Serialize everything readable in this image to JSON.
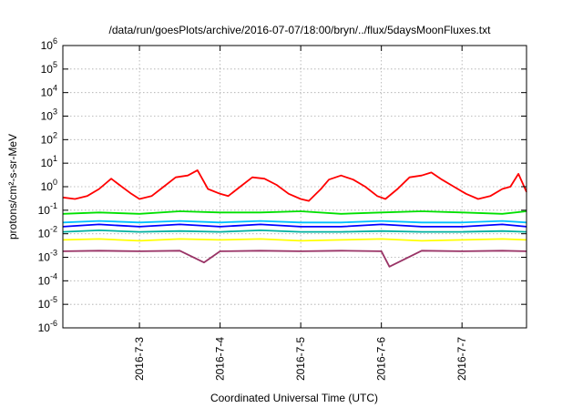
{
  "chart_data": {
    "type": "line",
    "title": "/data/run/goesPlots/archive/2016-07-07/18:00/bryn/../flux/5daysMoonFluxes.txt",
    "xlabel": "Coordinated Universal Time (UTC)",
    "ylabel": "protons/cm²-s-sr-MeV",
    "yscale": "log",
    "ylim": [
      1e-06,
      1000000.0
    ],
    "xlim": [
      2016.502,
      2016.5157
    ],
    "grid": true,
    "legend": "none",
    "x_tick_labels": [
      "2016-7-3",
      "2016-7-4",
      "2016-7-5",
      "2016-7-6",
      "2016-7-7"
    ],
    "x_tick_days": [
      3,
      4,
      5,
      6,
      7
    ],
    "x_range_days": [
      2.05,
      7.8
    ],
    "y_tick_exponents": [
      -6,
      -5,
      -4,
      -3,
      -2,
      -1,
      0,
      1,
      2,
      3,
      4,
      5,
      6
    ],
    "series": [
      {
        "color": "#ff0000",
        "days": [
          2.05,
          2.2,
          2.35,
          2.5,
          2.65,
          2.75,
          2.9,
          3.0,
          3.15,
          3.3,
          3.45,
          3.6,
          3.72,
          3.85,
          4.0,
          4.1,
          4.25,
          4.4,
          4.55,
          4.7,
          4.85,
          5.0,
          5.1,
          5.25,
          5.35,
          5.5,
          5.65,
          5.8,
          5.95,
          6.05,
          6.2,
          6.35,
          6.5,
          6.62,
          6.75,
          6.9,
          7.05,
          7.2,
          7.35,
          7.5,
          7.6,
          7.7,
          7.8
        ],
        "values": [
          0.35,
          0.3,
          0.4,
          0.8,
          2.2,
          1.2,
          0.5,
          0.3,
          0.4,
          1.0,
          2.5,
          3.0,
          5.0,
          0.8,
          0.5,
          0.4,
          1.0,
          2.5,
          2.2,
          1.2,
          0.5,
          0.3,
          0.25,
          0.8,
          2.0,
          3.0,
          2.0,
          1.0,
          0.4,
          0.3,
          0.8,
          2.5,
          3.0,
          4.0,
          2.0,
          1.0,
          0.5,
          0.3,
          0.4,
          0.8,
          1.0,
          3.5,
          0.6
        ]
      },
      {
        "color": "#00e000",
        "days": [
          2.05,
          2.5,
          3.0,
          3.5,
          4.0,
          4.5,
          5.0,
          5.5,
          6.0,
          6.5,
          7.0,
          7.5,
          7.8
        ],
        "values": [
          0.07,
          0.08,
          0.07,
          0.09,
          0.08,
          0.08,
          0.09,
          0.07,
          0.08,
          0.09,
          0.08,
          0.07,
          0.09
        ]
      },
      {
        "color": "#00c0ff",
        "days": [
          2.05,
          2.5,
          3.0,
          3.5,
          4.0,
          4.5,
          5.0,
          5.5,
          6.0,
          6.5,
          7.0,
          7.5,
          7.8
        ],
        "values": [
          0.03,
          0.035,
          0.03,
          0.035,
          0.03,
          0.035,
          0.03,
          0.03,
          0.035,
          0.03,
          0.03,
          0.035,
          0.03
        ]
      },
      {
        "color": "#0000ff",
        "days": [
          2.05,
          2.5,
          3.0,
          3.5,
          4.0,
          4.5,
          5.0,
          5.5,
          6.0,
          6.5,
          7.0,
          7.5,
          7.8
        ],
        "values": [
          0.02,
          0.025,
          0.02,
          0.025,
          0.02,
          0.025,
          0.02,
          0.02,
          0.025,
          0.02,
          0.02,
          0.025,
          0.02
        ]
      },
      {
        "color": "#00b0a0",
        "days": [
          2.05,
          2.5,
          3.0,
          3.5,
          4.0,
          4.5,
          5.0,
          5.5,
          6.0,
          6.5,
          7.0,
          7.5,
          7.8
        ],
        "values": [
          0.012,
          0.014,
          0.012,
          0.013,
          0.012,
          0.014,
          0.012,
          0.012,
          0.013,
          0.012,
          0.012,
          0.013,
          0.012
        ]
      },
      {
        "color": "#ffff00",
        "days": [
          2.05,
          2.5,
          3.0,
          3.5,
          4.0,
          4.5,
          5.0,
          5.5,
          6.0,
          6.5,
          7.0,
          7.5,
          7.8
        ],
        "values": [
          0.0055,
          0.006,
          0.005,
          0.006,
          0.0055,
          0.006,
          0.005,
          0.0055,
          0.006,
          0.005,
          0.0055,
          0.006,
          0.0055
        ]
      },
      {
        "color": "#993366",
        "days": [
          2.05,
          2.5,
          3.0,
          3.5,
          3.8,
          4.0,
          4.5,
          5.0,
          5.5,
          6.0,
          6.1,
          6.5,
          7.0,
          7.5,
          7.8
        ],
        "values": [
          0.0018,
          0.0019,
          0.0018,
          0.0019,
          0.0006,
          0.0018,
          0.0019,
          0.0018,
          0.0019,
          0.0018,
          0.0004,
          0.0019,
          0.0018,
          0.0019,
          0.0018
        ]
      }
    ]
  }
}
